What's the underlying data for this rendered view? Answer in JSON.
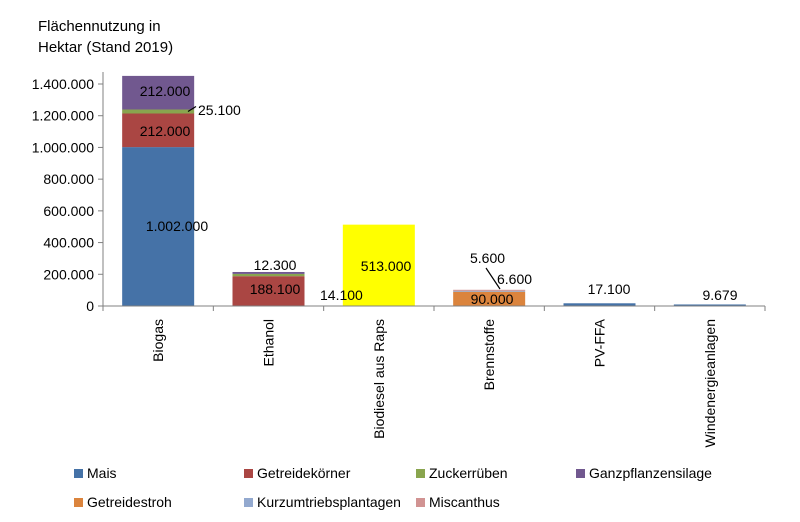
{
  "chart_data": {
    "type": "bar",
    "stacked": true,
    "title_lines": [
      "Flächennutzung in",
      "Hektar (Stand 2019)"
    ],
    "xlabel": "",
    "ylabel": "",
    "ylim": [
      0,
      1400000
    ],
    "yticks": [
      {
        "value": 0,
        "label": "0"
      },
      {
        "value": 200000,
        "label": "200.000"
      },
      {
        "value": 400000,
        "label": "400.000"
      },
      {
        "value": 600000,
        "label": "600.000"
      },
      {
        "value": 800000,
        "label": "800.000"
      },
      {
        "value": 1000000,
        "label": "1.000.000"
      },
      {
        "value": 1200000,
        "label": "1.200.000"
      },
      {
        "value": 1400000,
        "label": "1.400.000"
      }
    ],
    "grid": false,
    "legend_position": "bottom",
    "categories": [
      "Biogas",
      "Ethanol",
      "Biodiesel aus Raps",
      "Brennstoffe",
      "PV-FFA",
      "Windenergieanlagen"
    ],
    "series": [
      {
        "name": "Mais",
        "color": "#4572A7",
        "values": [
          1002000,
          0,
          0,
          0,
          17100,
          9679
        ],
        "labels": [
          "1.002.000",
          "",
          "",
          "",
          "17.100",
          "9.679"
        ]
      },
      {
        "name": "Getreidekörner",
        "color": "#AA4643",
        "values": [
          212000,
          188100,
          0,
          0,
          0,
          0
        ],
        "labels": [
          "212.000",
          "188.100",
          "",
          "",
          "",
          ""
        ]
      },
      {
        "name": "Zuckerrüben",
        "color": "#89A54E",
        "values": [
          25100,
          14100,
          0,
          0,
          0,
          0
        ],
        "labels": [
          "25.100",
          "14.100",
          "",
          "",
          "",
          ""
        ]
      },
      {
        "name": "Ganzpflanzensilage",
        "color": "#71588F",
        "values": [
          212000,
          12300,
          0,
          0,
          0,
          0
        ],
        "labels": [
          "212.000",
          "12.300",
          "",
          "",
          "",
          ""
        ]
      },
      {
        "name": "Getreidestroh",
        "color": "#DB843D",
        "values": [
          0,
          0,
          0,
          90000,
          0,
          0
        ],
        "labels": [
          "",
          "",
          "",
          "90.000",
          "",
          ""
        ]
      },
      {
        "name": "Kurzumtriebsplantagen",
        "color": "#93A9CF",
        "values": [
          0,
          0,
          0,
          6600,
          0,
          0
        ],
        "labels": [
          "",
          "",
          "",
          "6.600",
          "",
          ""
        ]
      },
      {
        "name": "Miscanthus",
        "color": "#D19392",
        "values": [
          0,
          0,
          0,
          5600,
          0,
          0
        ],
        "labels": [
          "",
          "",
          "",
          "5.600",
          "",
          ""
        ]
      }
    ],
    "extra_bars": [
      {
        "category": "Biodiesel aus Raps",
        "value": 513000,
        "label": "513.000",
        "color": "#FFFF00"
      }
    ]
  }
}
